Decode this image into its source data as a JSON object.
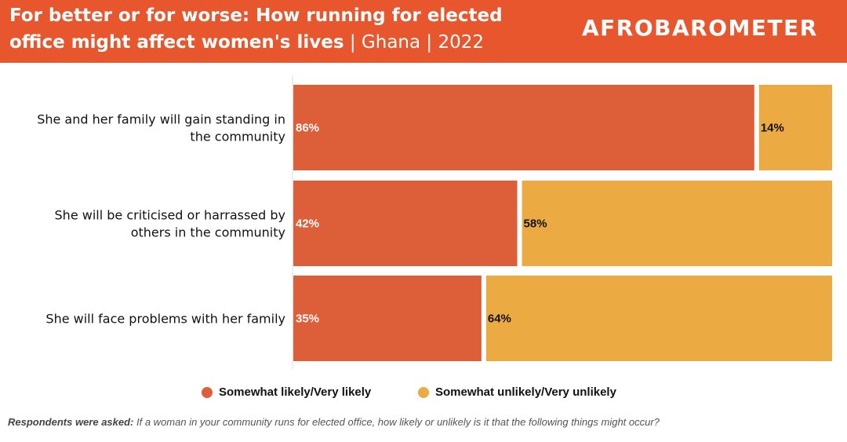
{
  "header": {
    "title_bold": "For better or for worse: How running for elected office might affect women's lives",
    "title_suffix": " | Ghana | 2022",
    "logo_text": "AFROBAROMETER"
  },
  "colors": {
    "header_bg": "#e8562e",
    "likely": "#dc5f3a",
    "unlikely": "#ebab42"
  },
  "chart_data": {
    "type": "bar",
    "orientation": "horizontal",
    "stacked": true,
    "categories": [
      "She and her family will gain standing in the community",
      "She will be criticised or harrassed by others in the community",
      "She will face problems with her family"
    ],
    "series": [
      {
        "name": "Somewhat likely/Very likely",
        "values": [
          86,
          42,
          35
        ],
        "labels": [
          "86%",
          "42%",
          "35%"
        ],
        "color": "#dc5f3a"
      },
      {
        "name": "Somewhat unlikely/Very unlikely",
        "values": [
          14,
          58,
          64
        ],
        "labels": [
          "14%",
          "58%",
          "64%"
        ],
        "color": "#ebab42"
      }
    ],
    "xlim": [
      0,
      100
    ],
    "grid": false,
    "legend_position": "bottom"
  },
  "footnote": {
    "label": "Respondents were asked:",
    "text": " If a woman in your community runs for elected office, how likely or unlikely is it that the following things might occur?"
  }
}
